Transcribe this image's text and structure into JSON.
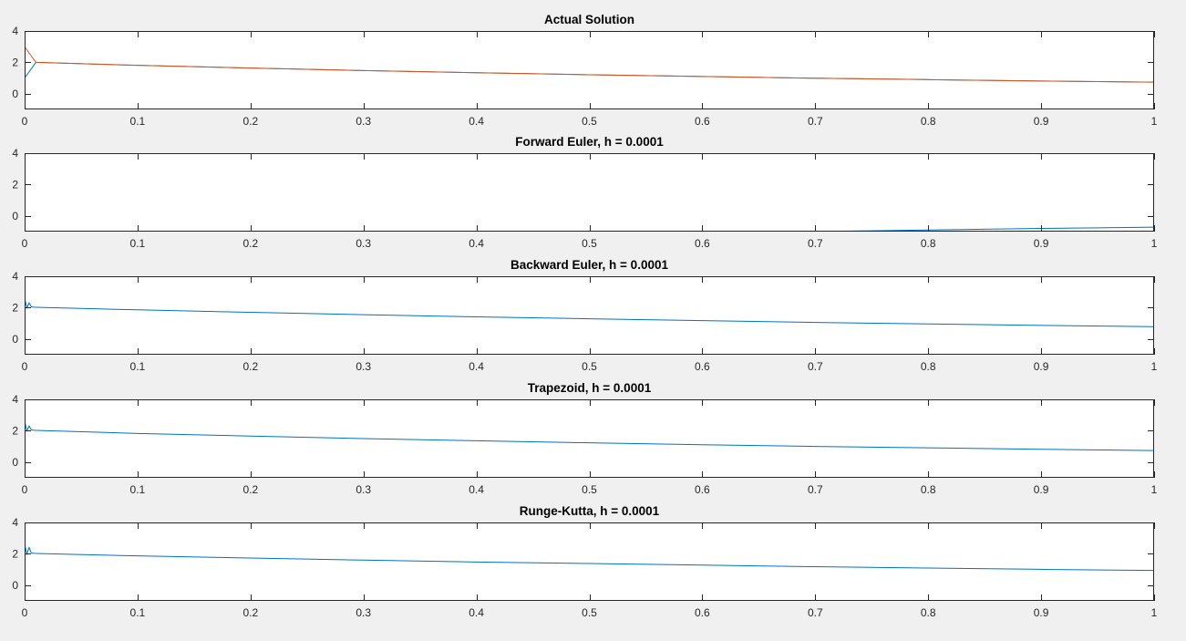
{
  "colors": {
    "figure_bg": "#f0f0f0",
    "axes_bg": "#ffffff",
    "axis": "#262626",
    "series1": "#0072bd",
    "series2": "#d95319"
  },
  "chart_data": [
    {
      "type": "line",
      "title": "Actual Solution",
      "xlim": [
        0,
        1
      ],
      "ylim": [
        -1,
        4
      ],
      "xticks": [
        0,
        0.1,
        0.2,
        0.3,
        0.4,
        0.5,
        0.6,
        0.7,
        0.8,
        0.9,
        1
      ],
      "xtick_labels": [
        "0",
        "0.1",
        "0.2",
        "0.3",
        "0.4",
        "0.5",
        "0.6",
        "0.7",
        "0.8",
        "0.9",
        "1"
      ],
      "yticks": [
        0,
        2,
        4
      ],
      "ytick_labels": [
        "0",
        "2",
        "4"
      ],
      "grid": false,
      "series": [
        {
          "color": "#0072bd",
          "x": [
            0,
            0.01,
            0.1,
            0.2,
            0.3,
            0.4,
            0.5,
            0.6,
            0.7,
            0.8,
            0.9,
            1
          ],
          "y": [
            1,
            2.0,
            1.81,
            1.64,
            1.48,
            1.34,
            1.21,
            1.1,
            0.99,
            0.9,
            0.81,
            0.74
          ]
        },
        {
          "color": "#d95319",
          "x": [
            0,
            0.01,
            0.1,
            0.2,
            0.3,
            0.4,
            0.5,
            0.6,
            0.7,
            0.8,
            0.9,
            1
          ],
          "y": [
            3,
            2.0,
            1.81,
            1.64,
            1.48,
            1.34,
            1.21,
            1.1,
            0.99,
            0.9,
            0.81,
            0.74
          ]
        }
      ]
    },
    {
      "type": "line",
      "title": "Forward Euler, h = 0.0001",
      "xlim": [
        0,
        1
      ],
      "ylim": [
        -1,
        4
      ],
      "xticks": [
        0,
        0.1,
        0.2,
        0.3,
        0.4,
        0.5,
        0.6,
        0.7,
        0.8,
        0.9,
        1
      ],
      "xtick_labels": [
        "0",
        "0.1",
        "0.2",
        "0.3",
        "0.4",
        "0.5",
        "0.6",
        "0.7",
        "0.8",
        "0.9",
        "1"
      ],
      "yticks": [
        0,
        2,
        4
      ],
      "ytick_labels": [
        "0",
        "2",
        "4"
      ],
      "grid": false,
      "series": [
        {
          "color": "#0072bd",
          "x": [
            0.69,
            0.75,
            0.8,
            0.85,
            0.9,
            0.95,
            1
          ],
          "y": [
            -1.0,
            -0.95,
            -0.9,
            -0.85,
            -0.8,
            -0.76,
            -0.72
          ]
        }
      ]
    },
    {
      "type": "line",
      "title": "Backward Euler, h = 0.0001",
      "xlim": [
        0,
        1
      ],
      "ylim": [
        -1,
        4
      ],
      "xticks": [
        0,
        0.1,
        0.2,
        0.3,
        0.4,
        0.5,
        0.6,
        0.7,
        0.8,
        0.9,
        1
      ],
      "xtick_labels": [
        "0",
        "0.1",
        "0.2",
        "0.3",
        "0.4",
        "0.5",
        "0.6",
        "0.7",
        "0.8",
        "0.9",
        "1"
      ],
      "yticks": [
        0,
        2,
        4
      ],
      "ytick_labels": [
        "0",
        "2",
        "4"
      ],
      "grid": false,
      "series": [
        {
          "color": "#0072bd",
          "x": [
            0,
            0.002,
            0.004,
            0.006,
            0.01,
            0.1,
            0.2,
            0.3,
            0.4,
            0.5,
            0.6,
            0.7,
            0.8,
            0.9,
            1
          ],
          "y": [
            2.6,
            2.0,
            2.3,
            2.05,
            2.02,
            1.86,
            1.7,
            1.55,
            1.41,
            1.29,
            1.17,
            1.06,
            0.96,
            0.87,
            0.79
          ]
        }
      ]
    },
    {
      "type": "line",
      "title": "Trapezoid, h = 0.0001",
      "xlim": [
        0,
        1
      ],
      "ylim": [
        -1,
        4
      ],
      "xticks": [
        0,
        0.1,
        0.2,
        0.3,
        0.4,
        0.5,
        0.6,
        0.7,
        0.8,
        0.9,
        1
      ],
      "xtick_labels": [
        "0",
        "0.1",
        "0.2",
        "0.3",
        "0.4",
        "0.5",
        "0.6",
        "0.7",
        "0.8",
        "0.9",
        "1"
      ],
      "yticks": [
        0,
        2,
        4
      ],
      "ytick_labels": [
        "0",
        "2",
        "4"
      ],
      "grid": false,
      "series": [
        {
          "color": "#0072bd",
          "x": [
            0,
            0.002,
            0.004,
            0.006,
            0.01,
            0.1,
            0.2,
            0.3,
            0.4,
            0.5,
            0.6,
            0.7,
            0.8,
            0.9,
            1
          ],
          "y": [
            2.6,
            2.0,
            2.3,
            2.05,
            2.02,
            1.83,
            1.66,
            1.5,
            1.36,
            1.23,
            1.11,
            1.0,
            0.91,
            0.82,
            0.74
          ]
        }
      ]
    },
    {
      "type": "line",
      "title": "Runge-Kutta, h = 0.0001",
      "xlim": [
        0,
        1
      ],
      "ylim": [
        -1,
        4
      ],
      "xticks": [
        0,
        0.1,
        0.2,
        0.3,
        0.4,
        0.5,
        0.6,
        0.7,
        0.8,
        0.9,
        1
      ],
      "xtick_labels": [
        "0",
        "0.1",
        "0.2",
        "0.3",
        "0.4",
        "0.5",
        "0.6",
        "0.7",
        "0.8",
        "0.9",
        "1"
      ],
      "yticks": [
        0,
        2,
        4
      ],
      "ytick_labels": [
        "0",
        "2",
        "4"
      ],
      "grid": false,
      "series": [
        {
          "color": "#0072bd",
          "x": [
            0,
            0.002,
            0.004,
            0.006,
            0.01,
            0.1,
            0.2,
            0.3,
            0.4,
            0.5,
            0.6,
            0.7,
            0.8,
            0.9,
            1
          ],
          "y": [
            2.6,
            2.0,
            2.4,
            2.05,
            2.02,
            1.87,
            1.73,
            1.6,
            1.48,
            1.38,
            1.28,
            1.18,
            1.09,
            1.01,
            0.94
          ]
        }
      ]
    }
  ]
}
